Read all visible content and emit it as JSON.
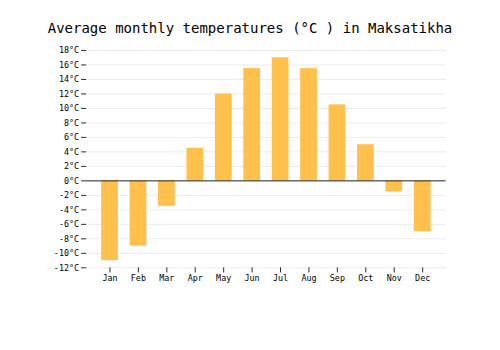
{
  "chart_data": {
    "type": "bar",
    "title": "Average monthly temperatures (°C ) in Maksatikha",
    "categories": [
      "Jan",
      "Feb",
      "Mar",
      "Apr",
      "May",
      "Jun",
      "Jul",
      "Aug",
      "Sep",
      "Oct",
      "Nov",
      "Dec"
    ],
    "values": [
      -11,
      -9,
      -3.5,
      4.5,
      12,
      15.5,
      17,
      15.5,
      10.5,
      5,
      -1.5,
      -7
    ],
    "color": "#FFC04C",
    "ylim": [
      -12,
      18
    ],
    "yticks": [
      {
        "value": -12,
        "label": "-12°C"
      },
      {
        "value": -10,
        "label": "-10°C"
      },
      {
        "value": -8,
        "label": "-8°C"
      },
      {
        "value": -6,
        "label": "-6°C"
      },
      {
        "value": -4,
        "label": "-4°C"
      },
      {
        "value": -2,
        "label": "-2°C"
      },
      {
        "value": 0,
        "label": "0°C"
      },
      {
        "value": 2,
        "label": "2°C"
      },
      {
        "value": 4,
        "label": "4°C"
      },
      {
        "value": 6,
        "label": "6°C"
      },
      {
        "value": 8,
        "label": "8°C"
      },
      {
        "value": 10,
        "label": "10°C"
      },
      {
        "value": 12,
        "label": "12°C"
      },
      {
        "value": 14,
        "label": "14°C"
      },
      {
        "value": 16,
        "label": "16°C"
      },
      {
        "value": 18,
        "label": "18°C"
      }
    ],
    "grid": true
  }
}
